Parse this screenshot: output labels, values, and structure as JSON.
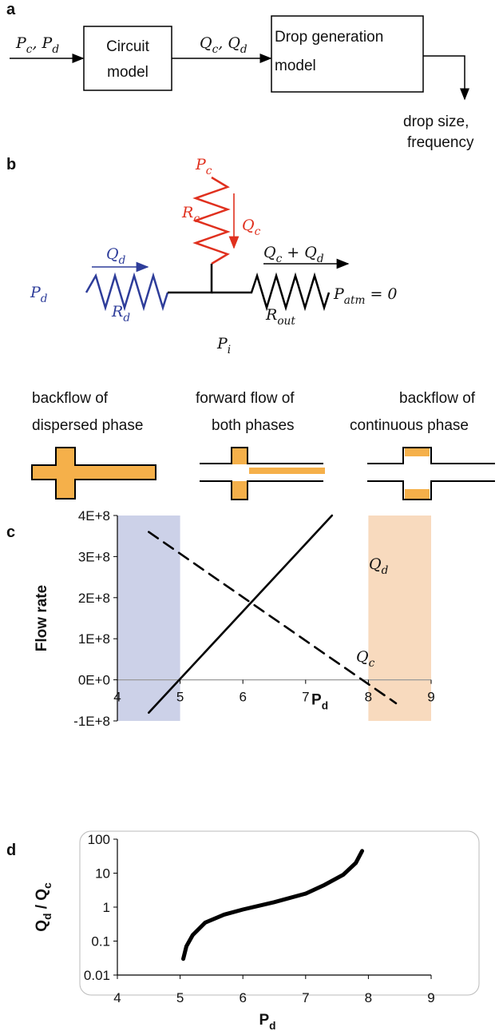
{
  "panel_labels": [
    "a",
    "b",
    "c",
    "d"
  ],
  "diagram_a": {
    "input": [
      {
        "text": "P"
      },
      {
        "sub": "c"
      },
      {
        "text": ", P"
      },
      {
        "sub": "d"
      }
    ],
    "box1": [
      "Circuit",
      "model"
    ],
    "middle": [
      {
        "text": "Q"
      },
      {
        "sub": "c"
      },
      {
        "text": ", Q"
      },
      {
        "sub": "d"
      }
    ],
    "box2": [
      "Drop generation",
      "model"
    ],
    "output": [
      "drop size,",
      "frequency"
    ]
  },
  "diagram_b": {
    "Pc": [
      {
        "text": "P"
      },
      {
        "sub": "c"
      }
    ],
    "Rc": [
      {
        "text": "R"
      },
      {
        "sub": "c"
      }
    ],
    "Qc": [
      {
        "text": "Q"
      },
      {
        "sub": "c"
      }
    ],
    "Qd": [
      {
        "text": "Q"
      },
      {
        "sub": "d"
      }
    ],
    "Pd": [
      {
        "text": "P"
      },
      {
        "sub": "d"
      }
    ],
    "Rd": [
      {
        "text": "R"
      },
      {
        "sub": "d"
      }
    ],
    "Qsum": [
      {
        "text": "Q"
      },
      {
        "sub": "c"
      },
      {
        "text": " + Q"
      },
      {
        "sub": "d"
      }
    ],
    "Patm": [
      {
        "text": "P"
      },
      {
        "sub": "atm"
      },
      {
        "text": " = 0"
      }
    ],
    "Rout": [
      {
        "text": "R"
      },
      {
        "sub": "out"
      }
    ],
    "Pi": [
      {
        "text": "P"
      },
      {
        "sub": "i"
      }
    ]
  },
  "regimes": [
    [
      "backflow of",
      "dispersed phase"
    ],
    [
      "forward flow of",
      "both phases"
    ],
    [
      "backflow of",
      "continuous phase"
    ]
  ],
  "chart_data": [
    {
      "type": "line",
      "log_y": false,
      "y_label": "Flow rate",
      "x_label": [
        {
          "text": "P"
        },
        {
          "sub": "d"
        }
      ],
      "xlim": [
        4,
        9
      ],
      "xticks": [
        4,
        5,
        6,
        7,
        8,
        9
      ],
      "ylim": [
        -100000000,
        400000000
      ],
      "yticks": [
        {
          "value": -100000000,
          "label": "-1E+8"
        },
        {
          "value": 0,
          "label": "0E+0"
        },
        {
          "value": 100000000,
          "label": "1E+8"
        },
        {
          "value": 200000000,
          "label": "2E+8"
        },
        {
          "value": 300000000,
          "label": "3E+8"
        },
        {
          "value": 400000000,
          "label": "4E+8"
        }
      ],
      "shaded_regions": [
        {
          "x": [
            4,
            5
          ],
          "color": "#c3c9e4"
        },
        {
          "x": [
            8,
            9
          ],
          "color": "#f7d3b3"
        }
      ],
      "series": [
        {
          "name": [
            {
              "text": "Q"
            },
            {
              "sub": "d"
            }
          ],
          "color": "#000000",
          "line_style": "solid",
          "x": [
            4.5,
            7.42
          ],
          "values": [
            -80000000,
            400000000
          ]
        },
        {
          "name": [
            {
              "text": "Q"
            },
            {
              "sub": "c"
            }
          ],
          "color": "#000000",
          "line_style": "dashed",
          "x": [
            4.5,
            8.44
          ],
          "values": [
            360000000,
            -57000000
          ]
        }
      ]
    },
    {
      "type": "line",
      "log_y": true,
      "y_label": [
        {
          "text": "Q"
        },
        {
          "sub": "d"
        },
        {
          "text": " / Q"
        },
        {
          "sub": "c"
        }
      ],
      "x_label": [
        {
          "text": "P"
        },
        {
          "sub": "d"
        }
      ],
      "xlim": [
        4,
        9
      ],
      "xticks": [
        4,
        5,
        6,
        7,
        8,
        9
      ],
      "ylim": [
        0.01,
        100
      ],
      "yticks": [
        0.01,
        0.1,
        1,
        10,
        100
      ],
      "series": [
        {
          "color": "#000000",
          "line_style": "solid",
          "x": [
            5.05,
            5.1,
            5.2,
            5.4,
            5.7,
            6,
            6.5,
            7,
            7.3,
            7.6,
            7.8,
            7.9
          ],
          "values": [
            0.03,
            0.07,
            0.15,
            0.35,
            0.6,
            0.85,
            1.4,
            2.5,
            4.5,
            9,
            20,
            45
          ]
        }
      ]
    }
  ]
}
